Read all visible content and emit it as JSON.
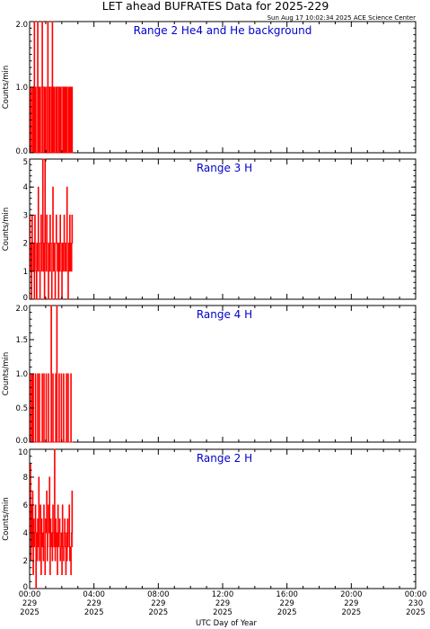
{
  "figure": {
    "title": "LET ahead BUFRATES Data for 2025-229",
    "timestamp": "Sun Aug 17 10:02:34 2025 ACE Science Center",
    "xlabel": "UTC Day of Year"
  },
  "colors": {
    "series": "#ff0000",
    "panel_label": "#0000cc",
    "axes": "#000000"
  },
  "chart_data": [
    {
      "type": "line",
      "label": "Range 2 He4 and He background",
      "ylabel": "Counts/min",
      "ylim": [
        0,
        2
      ],
      "yticks": [
        "0.0",
        "1.0",
        "2.0"
      ],
      "ytick_values": [
        0,
        1,
        2
      ],
      "xlim": [
        0,
        24
      ],
      "grid": false,
      "sample_step_hours": 0.035,
      "values": [
        0,
        1,
        0,
        1,
        1,
        0,
        1,
        0,
        2,
        0,
        1,
        0,
        0,
        1,
        2,
        0,
        1,
        0,
        1,
        0,
        0,
        1,
        2,
        0,
        1,
        1,
        0,
        1,
        0,
        0,
        1,
        0,
        2,
        1,
        0,
        1,
        0,
        1,
        1,
        0,
        2,
        0,
        1,
        0,
        1,
        0,
        0,
        1,
        0,
        1,
        1,
        0,
        1,
        0,
        1,
        0,
        0,
        1,
        1,
        0,
        1,
        0,
        1,
        0,
        1,
        0,
        1,
        0,
        0,
        1,
        0,
        1,
        0,
        1,
        0,
        1,
        0
      ]
    },
    {
      "type": "line",
      "label": "Range 3 H",
      "ylabel": "Counts/min",
      "ylim": [
        0,
        5
      ],
      "yticks": [
        "0",
        "1",
        "2",
        "3",
        "4",
        "5"
      ],
      "ytick_values": [
        0,
        1,
        2,
        3,
        4,
        5
      ],
      "xlim": [
        0,
        24
      ],
      "grid": false,
      "sample_step_hours": 0.035,
      "values": [
        3,
        1,
        2,
        0,
        3,
        2,
        1,
        2,
        0,
        3,
        2,
        1,
        0,
        2,
        1,
        4,
        2,
        1,
        0,
        2,
        3,
        1,
        2,
        5,
        1,
        2,
        0,
        5,
        2,
        1,
        3,
        2,
        1,
        0,
        2,
        1,
        3,
        2,
        1,
        0,
        2,
        4,
        1,
        2,
        1,
        0,
        2,
        3,
        2,
        1,
        2,
        0,
        2,
        1,
        3,
        2,
        1,
        0,
        2,
        1,
        2,
        3,
        1,
        2,
        1,
        2,
        4,
        1,
        0,
        2,
        1,
        3,
        1,
        2,
        1,
        3,
        2
      ]
    },
    {
      "type": "line",
      "label": "Range 4 H",
      "ylabel": "Counts/min",
      "ylim": [
        0,
        2
      ],
      "yticks": [
        "0.0",
        "0.5",
        "1.0",
        "1.5",
        "2.0"
      ],
      "ytick_values": [
        0,
        0.5,
        1,
        1.5,
        2
      ],
      "xlim": [
        0,
        24
      ],
      "grid": false,
      "sample_step_hours": 0.035,
      "values": [
        0,
        1,
        0,
        0,
        1,
        0,
        1,
        0,
        0,
        0,
        1,
        0,
        0,
        0,
        1,
        0,
        0,
        1,
        0,
        0,
        0,
        0,
        1,
        0,
        0,
        1,
        0,
        0,
        0,
        1,
        0,
        0,
        0,
        1,
        0,
        0,
        0,
        0,
        2,
        0,
        0,
        1,
        0,
        0,
        0,
        0,
        1,
        0,
        2,
        0,
        0,
        0,
        1,
        0,
        0,
        0,
        1,
        0,
        0,
        0,
        1,
        0,
        0,
        0,
        0,
        1,
        0,
        0,
        1,
        0,
        0,
        0,
        0,
        1,
        0,
        0,
        0
      ]
    },
    {
      "type": "line",
      "label": "Range 2 H",
      "ylabel": "Counts/min",
      "ylim": [
        0,
        10
      ],
      "yticks": [
        "0",
        "2",
        "4",
        "6",
        "8",
        "10"
      ],
      "ytick_values": [
        0,
        2,
        4,
        6,
        8,
        10
      ],
      "xlim": [
        0,
        24
      ],
      "grid": false,
      "sample_step_hours": 0.035,
      "values": [
        4,
        9,
        2,
        6,
        3,
        7,
        1,
        5,
        3,
        4,
        6,
        0,
        4,
        2,
        5,
        3,
        8,
        2,
        4,
        6,
        1,
        5,
        3,
        4,
        2,
        6,
        3,
        1,
        5,
        4,
        7,
        2,
        3,
        6,
        4,
        8,
        1,
        5,
        3,
        4,
        2,
        6,
        4,
        3,
        10,
        2,
        5,
        3,
        4,
        1,
        6,
        3,
        4,
        5,
        2,
        3,
        4,
        1,
        6,
        3,
        2,
        4,
        5,
        3,
        1,
        4,
        2,
        5,
        3,
        4,
        6,
        2,
        3,
        1,
        4,
        7,
        3
      ]
    }
  ],
  "xaxis": {
    "ticks": [
      {
        "value": 0,
        "time": "00:00",
        "doy": "229",
        "year": "2025"
      },
      {
        "value": 4,
        "time": "04:00",
        "doy": "229",
        "year": "2025"
      },
      {
        "value": 8,
        "time": "08:00",
        "doy": "229",
        "year": "2025"
      },
      {
        "value": 12,
        "time": "12:00",
        "doy": "229",
        "year": "2025"
      },
      {
        "value": 16,
        "time": "16:00",
        "doy": "229",
        "year": "2025"
      },
      {
        "value": 20,
        "time": "20:00",
        "doy": "229",
        "year": "2025"
      },
      {
        "value": 24,
        "time": "00:00",
        "doy": "230",
        "year": "2025"
      }
    ],
    "minor_step": 1
  }
}
